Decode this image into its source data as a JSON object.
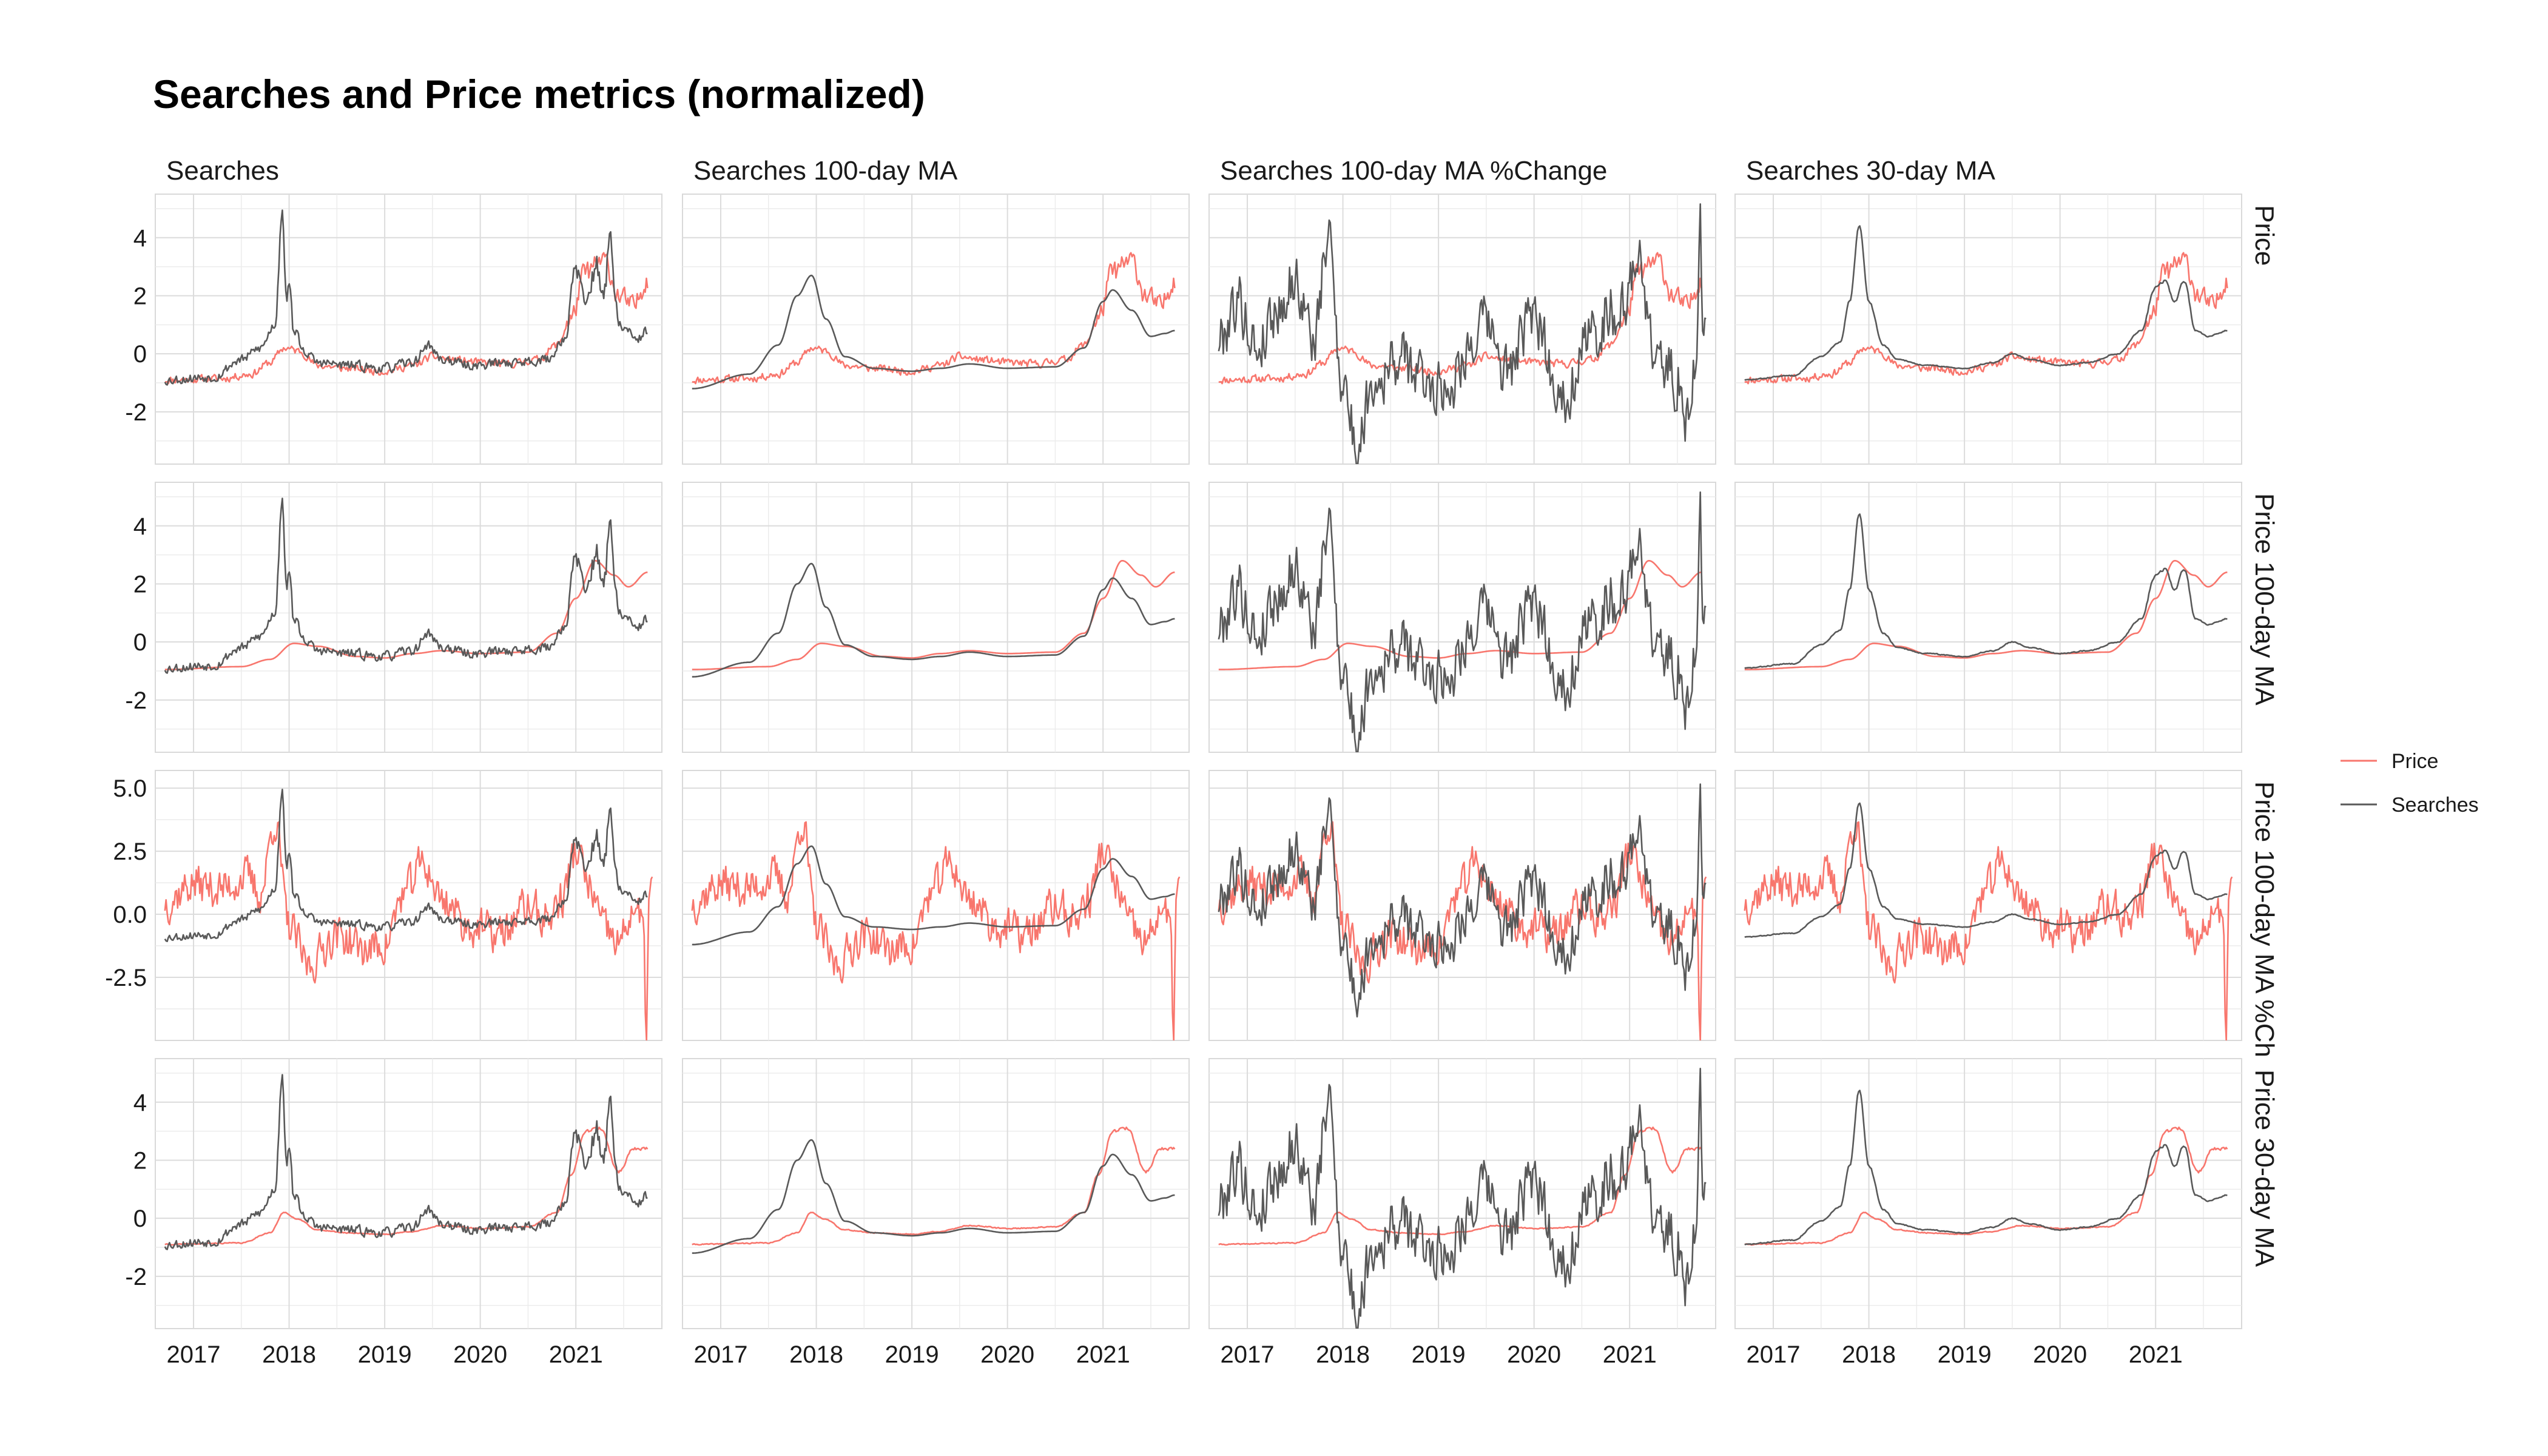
{
  "title": "Searches and Price metrics (normalized)",
  "chart_data": {
    "type": "line",
    "title": "Searches and Price metrics (normalized)",
    "layout": "facet grid, 4 rows x 4 columns",
    "column_facets": [
      "Searches",
      "Searches 100-day MA",
      "Searches 100-day MA %Change",
      "Searches 30-day MA"
    ],
    "row_facets": [
      "Price",
      "Price 100-day MA",
      "Price 100-day MA %Ch",
      "Price 30-day MA"
    ],
    "x_ticks": [
      "2017",
      "2018",
      "2019",
      "2020",
      "2021"
    ],
    "x_range": [
      2016.6,
      2021.9
    ],
    "row_y_ticks": [
      [
        "-2",
        "0",
        "2",
        "4"
      ],
      [
        "-2",
        "0",
        "2",
        "4"
      ],
      [
        "-2.5",
        "0.0",
        "2.5",
        "5.0"
      ],
      [
        "-2",
        "0",
        "2",
        "4"
      ]
    ],
    "row_y_tick_values": [
      [
        -2,
        0,
        2,
        4
      ],
      [
        -2,
        0,
        2,
        4
      ],
      [
        -2.5,
        0,
        2.5,
        5
      ],
      [
        -2,
        0,
        2,
        4
      ]
    ],
    "row_y_ranges": [
      [
        -3.8,
        5.5
      ],
      [
        -3.8,
        5.5
      ],
      [
        -5,
        5.7
      ],
      [
        -3.8,
        5.5
      ]
    ],
    "legend": {
      "position": "right",
      "entries": [
        {
          "name": "Price",
          "color": "#f8766d"
        },
        {
          "name": "Searches",
          "color": "#595959"
        }
      ]
    },
    "colors": {
      "price": "#f8766d",
      "searches": "#595959",
      "grid": "#e6e6e6",
      "panel_border": "#d9d9d9"
    },
    "grid": true,
    "series": {
      "price": {
        "anchors_x": [
          2016.7,
          2017.3,
          2017.6,
          2017.8,
          2017.95,
          2018.1,
          2018.3,
          2018.6,
          2019.0,
          2019.3,
          2019.5,
          2019.7,
          2020.0,
          2020.3,
          2020.6,
          2020.8,
          2020.95,
          2021.1,
          2021.3,
          2021.45,
          2021.6,
          2021.75
        ],
        "anchors_y": [
          -0.9,
          -0.85,
          -0.7,
          -0.3,
          0.2,
          0.1,
          -0.4,
          -0.5,
          -0.6,
          -0.4,
          -0.1,
          -0.2,
          -0.3,
          -0.35,
          -0.2,
          0.3,
          1.2,
          2.8,
          3.2,
          2.0,
          1.6,
          2.6
        ]
      },
      "price_100d_ma": {
        "anchors_x": [
          2016.7,
          2017.5,
          2017.8,
          2018.05,
          2018.3,
          2018.7,
          2019.0,
          2019.3,
          2019.6,
          2020.0,
          2020.5,
          2020.8,
          2021.0,
          2021.2,
          2021.4,
          2021.55,
          2021.75
        ],
        "anchors_y": [
          -0.95,
          -0.85,
          -0.6,
          -0.05,
          -0.15,
          -0.5,
          -0.55,
          -0.4,
          -0.3,
          -0.4,
          -0.35,
          0.3,
          1.5,
          2.8,
          2.3,
          1.9,
          2.4
        ]
      },
      "price_100d_ma_pchange": {
        "anchors_x": [
          2016.7,
          2017.0,
          2017.3,
          2017.55,
          2017.7,
          2017.85,
          2018.0,
          2018.2,
          2018.5,
          2018.8,
          2019.0,
          2019.2,
          2019.4,
          2019.6,
          2019.9,
          2020.2,
          2020.5,
          2020.7,
          2020.85,
          2021.0,
          2021.15,
          2021.3,
          2021.45,
          2021.6,
          2021.7,
          2021.74,
          2021.76,
          2021.8
        ],
        "anchors_y": [
          0.5,
          1.2,
          1.0,
          1.5,
          0.8,
          3.7,
          -0.5,
          -2.0,
          -0.8,
          -1.4,
          -1.2,
          0.8,
          2.0,
          0.6,
          -0.5,
          -0.8,
          0.3,
          -0.2,
          0.6,
          2.5,
          1.0,
          -0.6,
          -1.2,
          0.2,
          -0.4,
          -4.5,
          0.4,
          1.4
        ]
      },
      "price_30d_ma": {
        "anchors_x": [
          2016.7,
          2017.5,
          2017.8,
          2017.95,
          2018.1,
          2018.3,
          2018.6,
          2019.0,
          2019.3,
          2019.6,
          2020.0,
          2020.5,
          2020.8,
          2020.95,
          2021.1,
          2021.25,
          2021.45,
          2021.6,
          2021.75
        ],
        "anchors_y": [
          -0.9,
          -0.85,
          -0.5,
          0.2,
          -0.05,
          -0.4,
          -0.5,
          -0.55,
          -0.45,
          -0.25,
          -0.35,
          -0.3,
          0.2,
          1.5,
          3.0,
          3.1,
          1.6,
          2.4,
          2.4
        ]
      },
      "searches": {
        "anchors_x": [
          2016.7,
          2017.2,
          2017.5,
          2017.7,
          2017.85,
          2017.93,
          2017.96,
          2018.0,
          2018.06,
          2018.15,
          2018.3,
          2018.6,
          2019.0,
          2019.3,
          2019.45,
          2019.6,
          2019.9,
          2020.3,
          2020.7,
          2020.9,
          2021.0,
          2021.1,
          2021.2,
          2021.3,
          2021.35,
          2021.45,
          2021.55,
          2021.62,
          2021.75
        ],
        "anchors_y": [
          -0.9,
          -0.8,
          -0.2,
          0.2,
          1.0,
          5.2,
          2.5,
          2.0,
          0.8,
          0.1,
          -0.3,
          -0.4,
          -0.5,
          -0.3,
          0.3,
          -0.2,
          -0.4,
          -0.3,
          -0.2,
          0.6,
          3.0,
          1.5,
          3.0,
          2.2,
          3.8,
          1.0,
          0.8,
          0.4,
          0.8
        ]
      },
      "searches_100d_ma": {
        "anchors_x": [
          2016.7,
          2017.3,
          2017.6,
          2017.8,
          2017.95,
          2018.1,
          2018.3,
          2018.6,
          2019.0,
          2019.3,
          2019.6,
          2020.0,
          2020.5,
          2020.8,
          2021.0,
          2021.1,
          2021.3,
          2021.5,
          2021.65,
          2021.75
        ],
        "anchors_y": [
          -1.2,
          -0.7,
          0.3,
          2.0,
          2.7,
          1.2,
          -0.1,
          -0.5,
          -0.6,
          -0.5,
          -0.35,
          -0.5,
          -0.45,
          0.2,
          1.8,
          2.2,
          1.5,
          0.6,
          0.7,
          0.8
        ]
      },
      "searches_100d_ma_pchange": {
        "anchors_x": [
          2016.7,
          2016.9,
          2017.1,
          2017.3,
          2017.5,
          2017.7,
          2017.85,
          2018.0,
          2018.15,
          2018.3,
          2018.6,
          2018.9,
          2019.1,
          2019.3,
          2019.5,
          2019.7,
          2020.0,
          2020.3,
          2020.6,
          2020.8,
          2020.95,
          2021.1,
          2021.25,
          2021.4,
          2021.5,
          2021.6,
          2021.7,
          2021.74,
          2021.76,
          2021.8
        ],
        "anchors_y": [
          0.5,
          1.8,
          0.2,
          1.5,
          2.5,
          0.5,
          4.0,
          -1.0,
          -3.3,
          -1.0,
          -0.2,
          -1.0,
          -1.2,
          0.2,
          1.0,
          -0.6,
          1.2,
          -1.5,
          0.6,
          1.5,
          1.5,
          3.6,
          0.0,
          -0.5,
          -1.0,
          -2.2,
          0.0,
          4.6,
          1.0,
          0.5
        ]
      },
      "searches_30d_ma": {
        "anchors_x": [
          2016.7,
          2017.2,
          2017.5,
          2017.7,
          2017.8,
          2017.9,
          2018.0,
          2018.15,
          2018.3,
          2018.6,
          2019.0,
          2019.3,
          2019.5,
          2019.7,
          2020.0,
          2020.3,
          2020.6,
          2020.85,
          2021.0,
          2021.1,
          2021.2,
          2021.3,
          2021.42,
          2021.55,
          2021.65,
          2021.75
        ],
        "anchors_y": [
          -0.9,
          -0.75,
          -0.1,
          0.4,
          1.8,
          4.4,
          1.8,
          0.3,
          -0.2,
          -0.4,
          -0.5,
          -0.3,
          0.0,
          -0.2,
          -0.4,
          -0.3,
          0.0,
          0.8,
          2.3,
          2.5,
          1.8,
          2.5,
          0.8,
          0.6,
          0.7,
          0.8
        ]
      }
    },
    "panels": [
      {
        "row": 0,
        "col": 0,
        "red": "price",
        "gray": "searches"
      },
      {
        "row": 0,
        "col": 1,
        "red": "price",
        "gray": "searches_100d_ma"
      },
      {
        "row": 0,
        "col": 2,
        "red": "price",
        "gray": "searches_100d_ma_pchange"
      },
      {
        "row": 0,
        "col": 3,
        "red": "price",
        "gray": "searches_30d_ma"
      },
      {
        "row": 1,
        "col": 0,
        "red": "price_100d_ma",
        "gray": "searches"
      },
      {
        "row": 1,
        "col": 1,
        "red": "price_100d_ma",
        "gray": "searches_100d_ma"
      },
      {
        "row": 1,
        "col": 2,
        "red": "price_100d_ma",
        "gray": "searches_100d_ma_pchange"
      },
      {
        "row": 1,
        "col": 3,
        "red": "price_100d_ma",
        "gray": "searches_30d_ma"
      },
      {
        "row": 2,
        "col": 0,
        "red": "price_100d_ma_pchange",
        "gray": "searches"
      },
      {
        "row": 2,
        "col": 1,
        "red": "price_100d_ma_pchange",
        "gray": "searches_100d_ma"
      },
      {
        "row": 2,
        "col": 2,
        "red": "price_100d_ma_pchange",
        "gray": "searches_100d_ma_pchange"
      },
      {
        "row": 2,
        "col": 3,
        "red": "price_100d_ma_pchange",
        "gray": "searches_30d_ma"
      },
      {
        "row": 3,
        "col": 0,
        "red": "price_30d_ma",
        "gray": "searches"
      },
      {
        "row": 3,
        "col": 1,
        "red": "price_30d_ma",
        "gray": "searches_100d_ma"
      },
      {
        "row": 3,
        "col": 2,
        "red": "price_30d_ma",
        "gray": "searches_100d_ma_pchange"
      },
      {
        "row": 3,
        "col": 3,
        "red": "price_30d_ma",
        "gray": "searches_30d_ma"
      }
    ]
  }
}
